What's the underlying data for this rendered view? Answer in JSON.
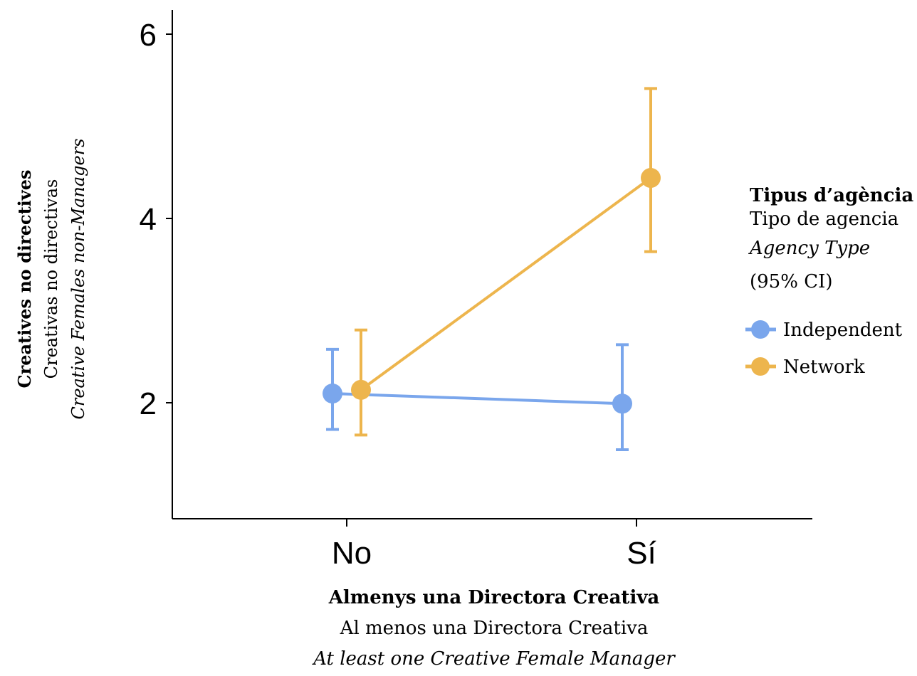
{
  "chart_data": {
    "type": "line",
    "categories": [
      "No",
      "Sí"
    ],
    "series": [
      {
        "name": "Independent",
        "color": "#7AA6EC",
        "values": [
          2.1,
          1.99
        ],
        "ci_lower": [
          1.71,
          1.49
        ],
        "ci_upper": [
          2.58,
          2.63
        ]
      },
      {
        "name": "Network",
        "color": "#EDB54D",
        "values": [
          2.14,
          4.44
        ],
        "ci_lower": [
          1.65,
          3.64
        ],
        "ci_upper": [
          2.79,
          5.41
        ]
      }
    ],
    "ylim": [
      0.8,
      6.3
    ],
    "yticks": [
      2,
      4,
      6
    ],
    "xlabel": {
      "line1": "Almenys una Directora Creativa",
      "line2": "Al menos una Directora Creativa",
      "line3": "At least one Creative Female Manager"
    },
    "ylabel": {
      "line1": "Creatives no directives",
      "line2": "Creativas no directivas",
      "line3": "Creative Females non-Managers"
    },
    "legend": {
      "title1": "Tipus d’agència",
      "title2": "Tipo de agencia",
      "title3": "Agency Type",
      "title4": "(95% CI)",
      "placement": "right"
    }
  }
}
